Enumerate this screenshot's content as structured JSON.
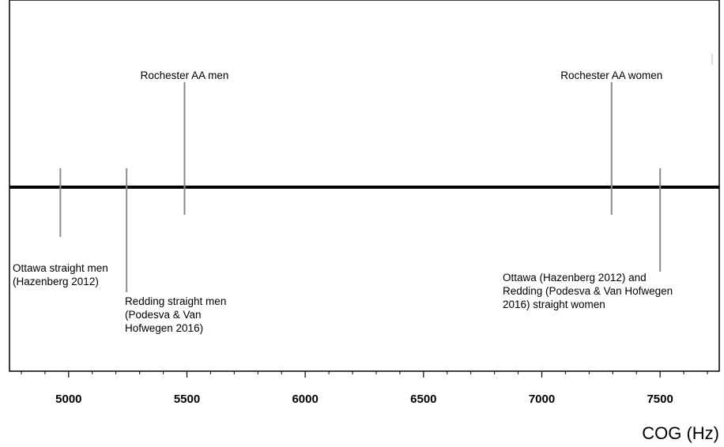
{
  "chart_data": {
    "type": "scatter",
    "title": "",
    "xlabel": "COG (Hz)",
    "ylabel": "",
    "xlim": [
      4750,
      7750
    ],
    "grid": false,
    "x_ticks": [
      5000,
      5500,
      6000,
      6500,
      7000,
      7500
    ],
    "x_tick_labels": [
      "5000",
      "5500",
      "6000",
      "6500",
      "7000",
      "7500"
    ],
    "markers": [
      {
        "x": 4965,
        "side": "below",
        "label_lines": [
          "Ottawa straight men",
          "(Hazenberg 2012)"
        ]
      },
      {
        "x": 5245,
        "side": "below",
        "label_lines": [
          "Redding straight men",
          "(Podesva & Van",
          "Hofwegen 2016)"
        ]
      },
      {
        "x": 5490,
        "side": "above",
        "label_lines": [
          "Rochester AA men"
        ]
      },
      {
        "x": 7295,
        "side": "above",
        "label_lines": [
          "Rochester AA women"
        ]
      },
      {
        "x": 7500,
        "side": "below",
        "label_lines": [
          "Ottawa (Hazenberg 2012) and",
          "Redding (Podesva & Van Hofwegen",
          "2016) straight women"
        ]
      }
    ]
  }
}
